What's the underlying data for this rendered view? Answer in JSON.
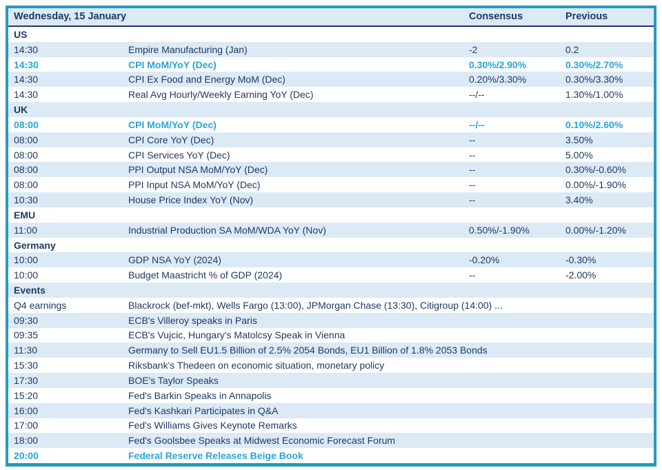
{
  "colors": {
    "teal_border": "#2899BE",
    "navy_text": "#1F3864",
    "cyan_highlight": "#29A4DC",
    "stripe_bg": "#DCEAF6"
  },
  "table": {
    "header": {
      "date": "Wednesday, 15 January",
      "consensus": "Consensus",
      "previous": "Previous"
    },
    "rows": [
      {
        "kind": "section",
        "label": "US"
      },
      {
        "kind": "data",
        "time": "14:30",
        "event": "Empire Manufacturing (Jan)",
        "consensus": "-2",
        "previous": "0.2",
        "highlight": false
      },
      {
        "kind": "data",
        "time": "14:30",
        "event": "CPI MoM/YoY (Dec)",
        "consensus": "0.30%/2.90%",
        "previous": "0.30%/2.70%",
        "highlight": true
      },
      {
        "kind": "data",
        "time": "14:30",
        "event": "CPI Ex Food and Energy MoM (Dec)",
        "consensus": "0.20%/3.30%",
        "previous": "0.30%/3.30%",
        "highlight": false
      },
      {
        "kind": "data",
        "time": "14:30",
        "event": "Real Avg Hourly/Weekly Earning YoY (Dec)",
        "consensus": "--/--",
        "previous": "1.30%/1.00%",
        "highlight": false
      },
      {
        "kind": "section",
        "label": "UK"
      },
      {
        "kind": "data",
        "time": "08:00",
        "event": "CPI MoM/YoY (Dec)",
        "consensus": "--/--",
        "previous": "0.10%/2.60%",
        "highlight": true
      },
      {
        "kind": "data",
        "time": "08:00",
        "event": "CPI Core YoY (Dec)",
        "consensus": "--",
        "previous": "3.50%",
        "highlight": false
      },
      {
        "kind": "data",
        "time": "08:00",
        "event": "CPI Services YoY (Dec)",
        "consensus": "--",
        "previous": "5.00%",
        "highlight": false
      },
      {
        "kind": "data",
        "time": "08:00",
        "event": "PPI Output NSA MoM/YoY (Dec)",
        "consensus": "--",
        "previous": "0.30%/-0.60%",
        "highlight": false
      },
      {
        "kind": "data",
        "time": "08:00",
        "event": "PPI Input NSA MoM/YoY (Dec)",
        "consensus": "--",
        "previous": "0.00%/-1.90%",
        "highlight": false
      },
      {
        "kind": "data",
        "time": "10:30",
        "event": "House Price Index YoY (Nov)",
        "consensus": "--",
        "previous": "3.40%",
        "highlight": false
      },
      {
        "kind": "section",
        "label": "EMU"
      },
      {
        "kind": "data",
        "time": "11:00",
        "event": "Industrial Production SA MoM/WDA YoY (Nov)",
        "consensus": "0.50%/-1.90%",
        "previous": "0.00%/-1.20%",
        "highlight": false
      },
      {
        "kind": "section",
        "label": "Germany"
      },
      {
        "kind": "data",
        "time": "10:00",
        "event": "GDP NSA YoY (2024)",
        "consensus": "-0.20%",
        "previous": "-0.30%",
        "highlight": false
      },
      {
        "kind": "data",
        "time": "10:00",
        "event": "Budget Maastricht % of GDP (2024)",
        "consensus": "--",
        "previous": "-2.00%",
        "highlight": false
      },
      {
        "kind": "section",
        "label": "Events"
      },
      {
        "kind": "data",
        "time": "Q4 earnings",
        "event": "Blackrock (bef-mkt), Wells Fargo (13:00), JPMorgan Chase (13:30), Citigroup (14:00) ...",
        "consensus": "",
        "previous": "",
        "highlight": false
      },
      {
        "kind": "data",
        "time": "09:30",
        "event": "ECB's Villeroy speaks in Paris",
        "consensus": "",
        "previous": "",
        "highlight": false
      },
      {
        "kind": "data",
        "time": "09:35",
        "event": "ECB's Vujcic, Hungary's Matolcsy Speak in Vienna",
        "consensus": "",
        "previous": "",
        "highlight": false
      },
      {
        "kind": "data",
        "time": "11:30",
        "event": "Germany to Sell EU1.5 Billion of 2.5% 2054 Bonds, EU1 Billion of 1.8% 2053 Bonds",
        "consensus": "",
        "previous": "",
        "highlight": false
      },
      {
        "kind": "data",
        "time": "15:30",
        "event": "Riksbank's Thedeen on economic situation, monetary policy",
        "consensus": "",
        "previous": "",
        "highlight": false
      },
      {
        "kind": "data",
        "time": "17:30",
        "event": "BOE's Taylor Speaks",
        "consensus": "",
        "previous": "",
        "highlight": false
      },
      {
        "kind": "data",
        "time": "15:20",
        "event": "Fed's Barkin Speaks in Annapolis",
        "consensus": "",
        "previous": "",
        "highlight": false
      },
      {
        "kind": "data",
        "time": "16:00",
        "event": "Fed's Kashkari Participates in Q&A",
        "consensus": "",
        "previous": "",
        "highlight": false
      },
      {
        "kind": "data",
        "time": "17:00",
        "event": "Fed's Williams Gives Keynote Remarks",
        "consensus": "",
        "previous": "",
        "highlight": false
      },
      {
        "kind": "data",
        "time": "18:00",
        "event": "Fed's Goolsbee Speaks at Midwest Economic Forecast Forum",
        "consensus": "",
        "previous": "",
        "highlight": false
      },
      {
        "kind": "data",
        "time": "20:00",
        "event": "Federal Reserve Releases Beige Book",
        "consensus": "",
        "previous": "",
        "highlight": true
      }
    ]
  }
}
